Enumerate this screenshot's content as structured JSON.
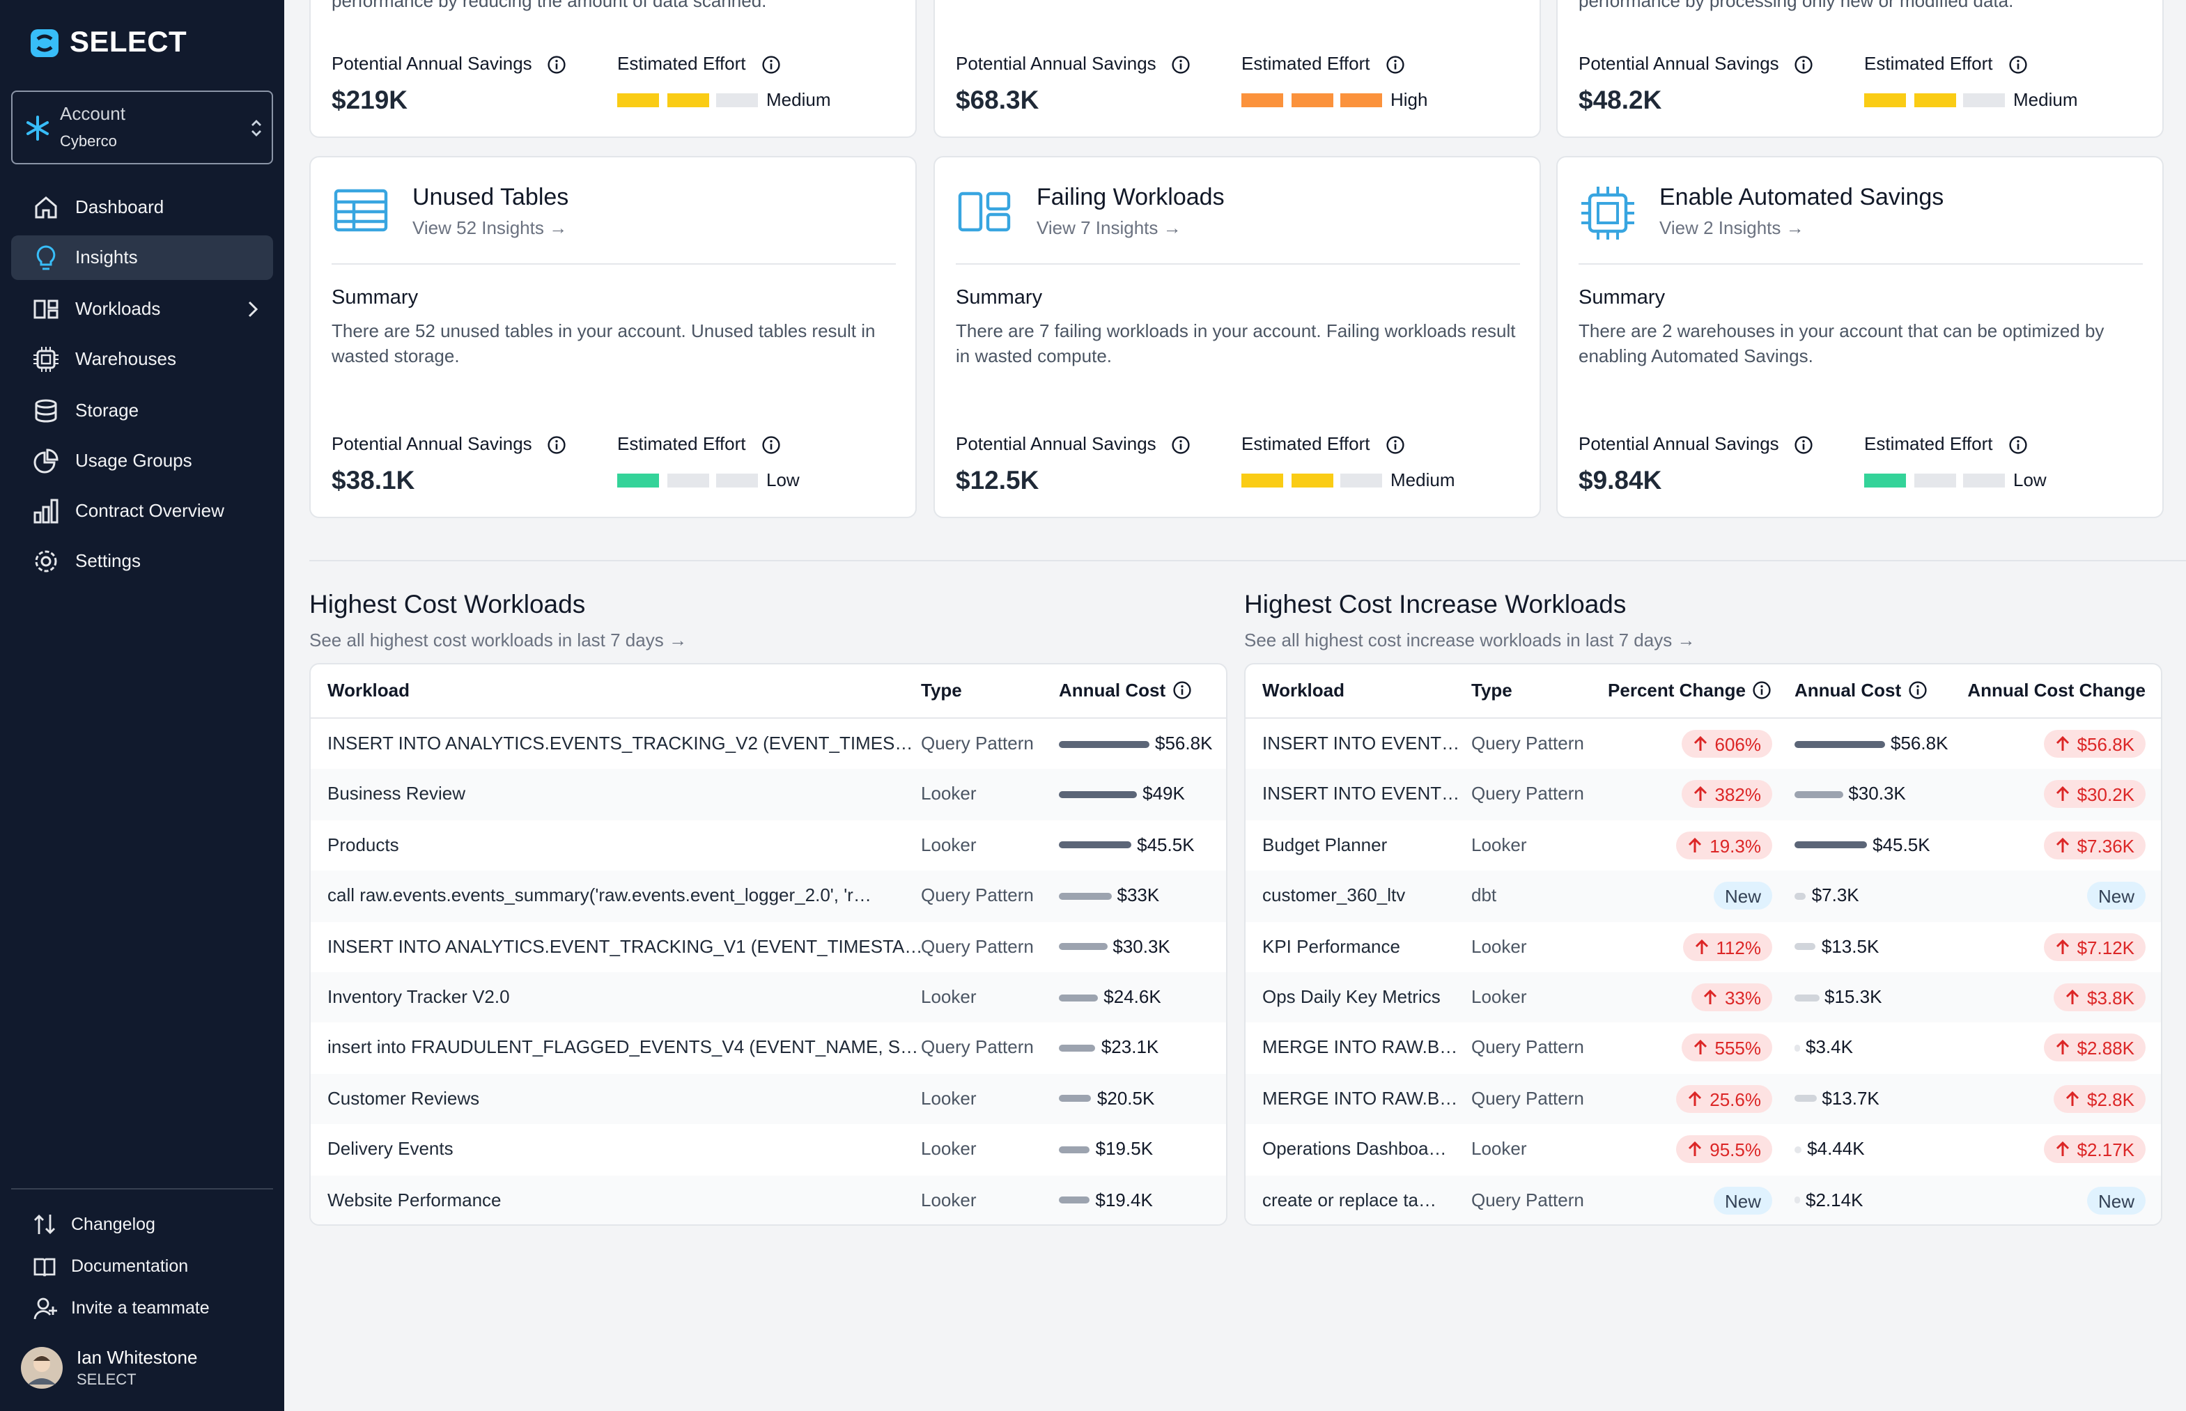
{
  "sidebar": {
    "brand": "SELECT",
    "account_label": "Account",
    "account_name": "Cyberco",
    "nav": [
      "Dashboard",
      "Insights",
      "Workloads",
      "Warehouses",
      "Storage",
      "Usage Groups",
      "Contract Overview",
      "Settings"
    ],
    "footer_links": [
      "Changelog",
      "Documentation",
      "Invite a teammate"
    ],
    "user": {
      "name": "Ian Whitestone",
      "org": "SELECT"
    }
  },
  "insights": {
    "cards": [
      {
        "text": "performance by reducing the amount of data scanned.",
        "savings_label": "Potential Annual Savings",
        "savings": "$219K",
        "effort_label": "Estimated Effort",
        "effort": "Medium",
        "effort_filled": 2,
        "effort_color": "#facc15"
      },
      {
        "savings_label": "Potential Annual Savings",
        "savings": "$68.3K",
        "effort_label": "Estimated Effort",
        "effort": "High",
        "effort_filled": 3,
        "effort_color": "#fb923c"
      },
      {
        "text": "performance by processing only new or modified data.",
        "savings_label": "Potential Annual Savings",
        "savings": "$48.2K",
        "effort_label": "Estimated Effort",
        "effort": "Medium",
        "effort_filled": 2,
        "effort_color": "#facc15"
      },
      {
        "title": "Unused Tables",
        "link": "View 52 Insights →",
        "summary_heading": "Summary",
        "text": "There are 52 unused tables in your account. Unused tables result in wasted storage.",
        "savings_label": "Potential Annual Savings",
        "savings": "$38.1K",
        "effort_label": "Estimated Effort",
        "effort": "Low",
        "effort_filled": 1,
        "effort_color": "#34d399"
      },
      {
        "title": "Failing Workloads",
        "link": "View 7 Insights →",
        "summary_heading": "Summary",
        "text": "There are 7 failing workloads in your account. Failing workloads result in wasted compute.",
        "savings_label": "Potential Annual Savings",
        "savings": "$12.5K",
        "effort_label": "Estimated Effort",
        "effort": "Medium",
        "effort_filled": 2,
        "effort_color": "#facc15"
      },
      {
        "title": "Enable Automated Savings",
        "link": "View 2 Insights →",
        "summary_heading": "Summary",
        "text": "There are 2 warehouses in your account that can be optimized by enabling Automated Savings.",
        "savings_label": "Potential Annual Savings",
        "savings": "$9.84K",
        "effort_label": "Estimated Effort",
        "effort": "Low",
        "effort_filled": 1,
        "effort_color": "#34d399"
      }
    ]
  },
  "cost_table": {
    "title": "Highest Cost Workloads",
    "link": "See all highest cost workloads in last 7 days →",
    "columns": [
      "Workload",
      "Type",
      "Annual Cost"
    ],
    "rows": [
      {
        "workload": "INSERT INTO ANALYTICS.EVENTS_TRACKING_V2 (EVENT_TIMES…",
        "type": "Query Pattern",
        "annual_cost": 56800,
        "annual_cost_label": "$56.8K"
      },
      {
        "workload": "Business Review",
        "type": "Looker",
        "annual_cost": 49000,
        "annual_cost_label": "$49K"
      },
      {
        "workload": "Products",
        "type": "Looker",
        "annual_cost": 45500,
        "annual_cost_label": "$45.5K"
      },
      {
        "workload": "call raw.events.events_summary('raw.events.event_logger_2.0', 'r…",
        "type": "Query Pattern",
        "annual_cost": 33000,
        "annual_cost_label": "$33K"
      },
      {
        "workload": "INSERT INTO ANALYTICS.EVENT_TRACKING_V1 (EVENT_TIMESTA…",
        "type": "Query Pattern",
        "annual_cost": 30300,
        "annual_cost_label": "$30.3K"
      },
      {
        "workload": "Inventory Tracker V2.0",
        "type": "Looker",
        "annual_cost": 24600,
        "annual_cost_label": "$24.6K"
      },
      {
        "workload": "insert into FRAUDULENT_FLAGGED_EVENTS_V4 (EVENT_NAME, S…",
        "type": "Query Pattern",
        "annual_cost": 23100,
        "annual_cost_label": "$23.1K"
      },
      {
        "workload": "Customer Reviews",
        "type": "Looker",
        "annual_cost": 20500,
        "annual_cost_label": "$20.5K"
      },
      {
        "workload": "Delivery Events",
        "type": "Looker",
        "annual_cost": 19500,
        "annual_cost_label": "$19.5K"
      },
      {
        "workload": "Website Performance",
        "type": "Looker",
        "annual_cost": 19400,
        "annual_cost_label": "$19.4K"
      }
    ]
  },
  "increase_table": {
    "title": "Highest Cost Increase Workloads",
    "link": "See all highest cost increase workloads in last 7 days →",
    "columns": [
      "Workload",
      "Type",
      "Percent Change",
      "Annual Cost",
      "Annual Cost Change"
    ],
    "rows": [
      {
        "workload": "INSERT INTO EVENT…",
        "type": "Query Pattern",
        "percent_change": 606,
        "percent_change_label": "606%",
        "annual_cost": 56800,
        "annual_cost_label": "$56.8K",
        "annual_cost_change": 56800,
        "annual_cost_change_label": "$56.8K"
      },
      {
        "workload": "INSERT INTO EVENT…",
        "type": "Query Pattern",
        "percent_change": 382,
        "percent_change_label": "382%",
        "annual_cost": 30300,
        "annual_cost_label": "$30.3K",
        "annual_cost_change": 30200,
        "annual_cost_change_label": "$30.2K"
      },
      {
        "workload": "Budget Planner",
        "type": "Looker",
        "percent_change": 19.3,
        "percent_change_label": "19.3%",
        "annual_cost": 45500,
        "annual_cost_label": "$45.5K",
        "annual_cost_change": 7360,
        "annual_cost_change_label": "$7.36K"
      },
      {
        "workload": "customer_360_ltv",
        "type": "dbt",
        "percent_change": null,
        "percent_change_label": "New",
        "annual_cost": 7300,
        "annual_cost_label": "$7.3K",
        "annual_cost_change": null,
        "annual_cost_change_label": "New"
      },
      {
        "workload": "KPI Performance",
        "type": "Looker",
        "percent_change": 112,
        "percent_change_label": "112%",
        "annual_cost": 13500,
        "annual_cost_label": "$13.5K",
        "annual_cost_change": 7120,
        "annual_cost_change_label": "$7.12K"
      },
      {
        "workload": "Ops Daily Key Metrics",
        "type": "Looker",
        "percent_change": 33,
        "percent_change_label": "33%",
        "annual_cost": 15300,
        "annual_cost_label": "$15.3K",
        "annual_cost_change": 3800,
        "annual_cost_change_label": "$3.8K"
      },
      {
        "workload": "MERGE INTO RAW.B…",
        "type": "Query Pattern",
        "percent_change": 555,
        "percent_change_label": "555%",
        "annual_cost": 3400,
        "annual_cost_label": "$3.4K",
        "annual_cost_change": 2880,
        "annual_cost_change_label": "$2.88K"
      },
      {
        "workload": "MERGE INTO RAW.B…",
        "type": "Query Pattern",
        "percent_change": 25.6,
        "percent_change_label": "25.6%",
        "annual_cost": 13700,
        "annual_cost_label": "$13.7K",
        "annual_cost_change": 2800,
        "annual_cost_change_label": "$2.8K"
      },
      {
        "workload": "Operations Dashboa…",
        "type": "Looker",
        "percent_change": 95.5,
        "percent_change_label": "95.5%",
        "annual_cost": 4440,
        "annual_cost_label": "$4.44K",
        "annual_cost_change": 2170,
        "annual_cost_change_label": "$2.17K"
      },
      {
        "workload": "create or replace ta…",
        "type": "Query Pattern",
        "percent_change": null,
        "percent_change_label": "New",
        "annual_cost": 2140,
        "annual_cost_label": "$2.14K",
        "annual_cost_change": null,
        "annual_cost_change_label": "New"
      }
    ]
  }
}
